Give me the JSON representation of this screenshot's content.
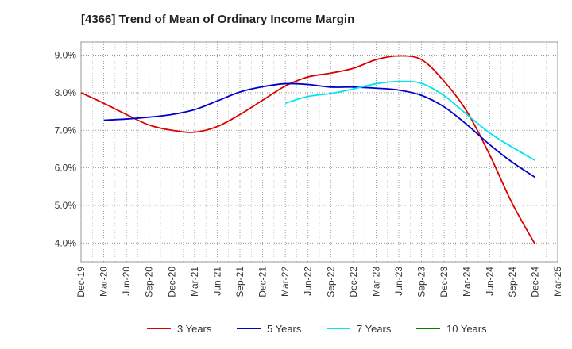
{
  "chart_data": {
    "type": "line",
    "title": "[4366]  Trend of Mean of Ordinary Income Margin",
    "xlabel": "",
    "ylabel": "",
    "x_tick_labels": [
      "Dec-19",
      "Mar-20",
      "Jun-20",
      "Sep-20",
      "Dec-20",
      "Mar-21",
      "Jun-21",
      "Sep-21",
      "Dec-21",
      "Mar-22",
      "Jun-22",
      "Sep-22",
      "Dec-22",
      "Mar-23",
      "Jun-23",
      "Sep-23",
      "Dec-23",
      "Mar-24",
      "Jun-24",
      "Sep-24",
      "Dec-24",
      "Mar-25"
    ],
    "y_tick_labels": [
      "4.0%",
      "5.0%",
      "6.0%",
      "7.0%",
      "8.0%",
      "9.0%"
    ],
    "y_ticks": [
      4.0,
      5.0,
      6.0,
      7.0,
      8.0,
      9.0
    ],
    "ylim": [
      3.5,
      9.35
    ],
    "grid": true,
    "legend_position": "bottom",
    "series": [
      {
        "name": "3 Years",
        "color": "#dd0000",
        "x": [
          "Dec-19",
          "Mar-20",
          "Jun-20",
          "Sep-20",
          "Dec-20",
          "Mar-21",
          "Jun-21",
          "Sep-21",
          "Dec-21",
          "Mar-22",
          "Jun-22",
          "Sep-22",
          "Dec-22",
          "Mar-23",
          "Jun-23",
          "Sep-23",
          "Dec-23",
          "Mar-24",
          "Jun-24",
          "Sep-24",
          "Dec-24"
        ],
        "values": [
          8.0,
          7.72,
          7.42,
          7.14,
          7.0,
          6.95,
          7.1,
          7.42,
          7.8,
          8.18,
          8.42,
          8.52,
          8.65,
          8.88,
          8.98,
          8.88,
          8.3,
          7.5,
          6.35,
          5.05,
          3.97
        ]
      },
      {
        "name": "5 Years",
        "color": "#0000cc",
        "x": [
          "Mar-20",
          "Jun-20",
          "Sep-20",
          "Dec-20",
          "Mar-21",
          "Jun-21",
          "Sep-21",
          "Dec-21",
          "Mar-22",
          "Jun-22",
          "Sep-22",
          "Dec-22",
          "Mar-23",
          "Jun-23",
          "Sep-23",
          "Dec-23",
          "Mar-24",
          "Jun-24",
          "Sep-24",
          "Dec-24"
        ],
        "values": [
          7.27,
          7.3,
          7.35,
          7.42,
          7.55,
          7.78,
          8.02,
          8.16,
          8.24,
          8.22,
          8.15,
          8.15,
          8.12,
          8.07,
          7.93,
          7.62,
          7.15,
          6.62,
          6.15,
          5.75
        ]
      },
      {
        "name": "7 Years",
        "color": "#00e5ee",
        "x": [
          "Mar-22",
          "Jun-22",
          "Sep-22",
          "Dec-22",
          "Mar-23",
          "Jun-23",
          "Sep-23",
          "Dec-23",
          "Mar-24",
          "Jun-24",
          "Sep-24",
          "Dec-24"
        ],
        "values": [
          7.72,
          7.9,
          7.98,
          8.1,
          8.24,
          8.3,
          8.25,
          7.92,
          7.42,
          6.93,
          6.55,
          6.2
        ]
      },
      {
        "name": "10 Years",
        "color": "#008000",
        "x": [],
        "values": []
      }
    ]
  }
}
